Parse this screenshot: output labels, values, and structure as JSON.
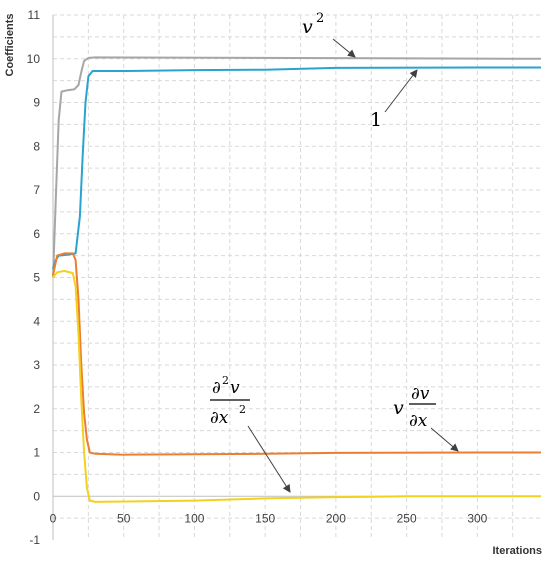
{
  "chart_data": {
    "type": "line",
    "xlabel": "Iterations",
    "ylabel": "Coefficients",
    "xlim": [
      0,
      345
    ],
    "ylim": [
      -1,
      11
    ],
    "x_ticks": [
      0,
      50,
      100,
      150,
      200,
      250,
      300
    ],
    "y_ticks": [
      -1,
      0,
      1,
      2,
      3,
      4,
      5,
      6,
      7,
      8,
      9,
      10,
      11
    ],
    "grid": true,
    "series": [
      {
        "name": "v²",
        "color": "#a6a6a6",
        "points": [
          [
            0,
            5.0
          ],
          [
            2,
            6.8
          ],
          [
            4,
            8.6
          ],
          [
            6,
            9.25
          ],
          [
            10,
            9.28
          ],
          [
            15,
            9.3
          ],
          [
            18,
            9.4
          ],
          [
            20,
            9.7
          ],
          [
            22,
            9.95
          ],
          [
            25,
            10.02
          ],
          [
            30,
            10.03
          ],
          [
            345,
            10.0
          ]
        ]
      },
      {
        "name": "1",
        "color": "#2aa3d0",
        "points": [
          [
            0,
            5.2
          ],
          [
            2,
            5.4
          ],
          [
            4,
            5.5
          ],
          [
            10,
            5.52
          ],
          [
            16,
            5.55
          ],
          [
            19,
            6.4
          ],
          [
            21,
            7.8
          ],
          [
            23,
            9.0
          ],
          [
            25,
            9.6
          ],
          [
            28,
            9.72
          ],
          [
            50,
            9.72
          ],
          [
            100,
            9.74
          ],
          [
            150,
            9.75
          ],
          [
            200,
            9.79
          ],
          [
            300,
            9.8
          ],
          [
            345,
            9.8
          ]
        ]
      },
      {
        "name": "v ∂v/∂x",
        "color": "#ed7d31",
        "points": [
          [
            0,
            5.05
          ],
          [
            3,
            5.5
          ],
          [
            8,
            5.55
          ],
          [
            14,
            5.55
          ],
          [
            16,
            5.4
          ],
          [
            18,
            4.5
          ],
          [
            20,
            3.0
          ],
          [
            22,
            1.9
          ],
          [
            24,
            1.3
          ],
          [
            26,
            1.0
          ],
          [
            30,
            0.97
          ],
          [
            50,
            0.95
          ],
          [
            100,
            0.96
          ],
          [
            150,
            0.97
          ],
          [
            200,
            0.99
          ],
          [
            300,
            1.0
          ],
          [
            345,
            1.0
          ]
        ]
      },
      {
        "name": "∂²v/∂x²",
        "color": "#f2d11f",
        "points": [
          [
            0,
            5.0
          ],
          [
            3,
            5.12
          ],
          [
            8,
            5.15
          ],
          [
            14,
            5.1
          ],
          [
            16,
            4.8
          ],
          [
            18,
            3.7
          ],
          [
            20,
            2.2
          ],
          [
            22,
            1.0
          ],
          [
            24,
            0.2
          ],
          [
            26,
            -0.1
          ],
          [
            30,
            -0.13
          ],
          [
            50,
            -0.12
          ],
          [
            100,
            -0.1
          ],
          [
            150,
            -0.05
          ],
          [
            200,
            -0.02
          ],
          [
            250,
            0.0
          ],
          [
            300,
            0.0
          ],
          [
            345,
            0.0
          ]
        ]
      }
    ],
    "annotations": [
      {
        "label": "v2",
        "series": "v²",
        "at": [
          300,
          10.0
        ]
      },
      {
        "label": "1",
        "series": "1",
        "at": [
          345,
          9.8
        ]
      },
      {
        "label": "v dv/dx",
        "series": "v ∂v/∂x",
        "at": [
          300,
          1.0
        ]
      },
      {
        "label": "d2v/dx2",
        "series": "∂²v/∂x²",
        "at": [
          130,
          -0.05
        ]
      }
    ]
  }
}
